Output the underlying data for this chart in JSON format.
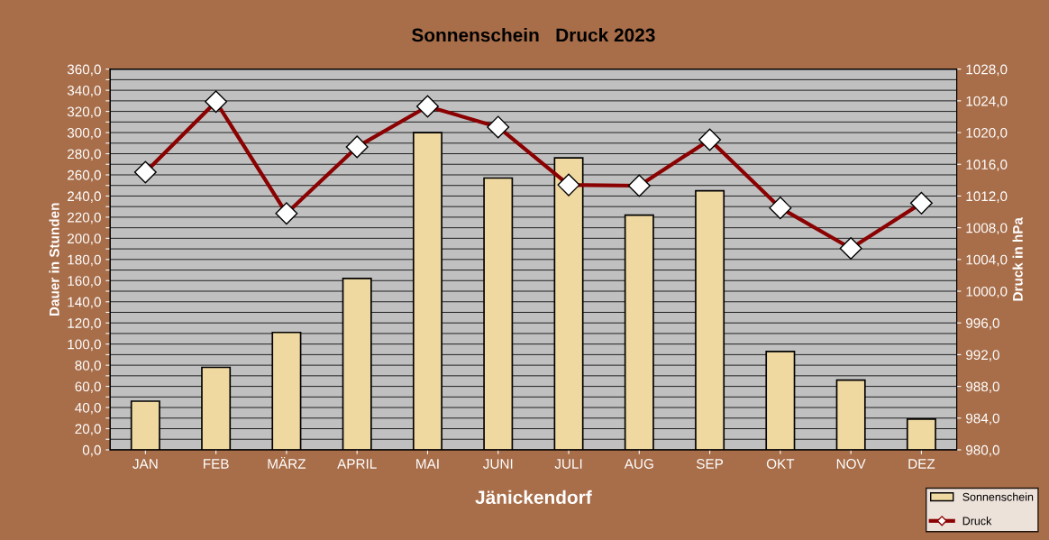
{
  "chart_data": {
    "type": "bar",
    "title": "Sonnenschein   Druck 2023",
    "xlabel": "Jänickendorf",
    "ylabel": "Dauer in Stunden",
    "y2label": "Druck in hPa",
    "categories": [
      "JAN",
      "FEB",
      "MÄRZ",
      "APRIL",
      "MAI",
      "JUNI",
      "JULI",
      "AUG",
      "SEP",
      "OKT",
      "NOV",
      "DEZ"
    ],
    "series": [
      {
        "name": "Sonnenschein",
        "color": "#f0d9a0",
        "values": [
          46,
          78,
          111,
          162,
          300,
          257,
          276,
          222,
          245,
          93,
          66,
          29
        ]
      },
      {
        "name": "Druck",
        "type": "line",
        "axis": "y2",
        "color": "#8b0000",
        "marker": "diamond",
        "values": [
          1015.0,
          1023.9,
          1009.8,
          1018.2,
          1023.3,
          1020.7,
          1013.4,
          1013.3,
          1019.1,
          1010.5,
          1005.4,
          1011.1
        ]
      }
    ],
    "ylim": [
      0,
      360
    ],
    "yticks": [
      {
        "value": 0,
        "label": "0,0"
      },
      {
        "value": 10,
        "label": null
      },
      {
        "value": 20,
        "label": "20,0"
      },
      {
        "value": 30,
        "label": null
      },
      {
        "value": 40,
        "label": "40,0"
      },
      {
        "value": 50,
        "label": null
      },
      {
        "value": 60,
        "label": "60,0"
      },
      {
        "value": 70,
        "label": null
      },
      {
        "value": 80,
        "label": "80,0"
      },
      {
        "value": 90,
        "label": null
      },
      {
        "value": 100,
        "label": "100,0"
      },
      {
        "value": 110,
        "label": null
      },
      {
        "value": 120,
        "label": "120,0"
      },
      {
        "value": 130,
        "label": null
      },
      {
        "value": 140,
        "label": "140,0"
      },
      {
        "value": 150,
        "label": null
      },
      {
        "value": 160,
        "label": "160,0"
      },
      {
        "value": 170,
        "label": null
      },
      {
        "value": 180,
        "label": "180,0"
      },
      {
        "value": 190,
        "label": null
      },
      {
        "value": 200,
        "label": "200,0"
      },
      {
        "value": 210,
        "label": null
      },
      {
        "value": 220,
        "label": "220,0"
      },
      {
        "value": 230,
        "label": null
      },
      {
        "value": 240,
        "label": "240,0"
      },
      {
        "value": 250,
        "label": null
      },
      {
        "value": 260,
        "label": "260,0"
      },
      {
        "value": 270,
        "label": null
      },
      {
        "value": 280,
        "label": "280,0"
      },
      {
        "value": 290,
        "label": null
      },
      {
        "value": 300,
        "label": "300,0"
      },
      {
        "value": 310,
        "label": null
      },
      {
        "value": 320,
        "label": "320,0"
      },
      {
        "value": 330,
        "label": null
      },
      {
        "value": 340,
        "label": "340,0"
      },
      {
        "value": 350,
        "label": null
      },
      {
        "value": 360,
        "label": "360,0"
      }
    ],
    "y2lim": [
      980,
      1028
    ],
    "y2ticks": [
      {
        "value": 980,
        "label": "980,0"
      },
      {
        "value": 984,
        "label": "984,0"
      },
      {
        "value": 988,
        "label": "988,0"
      },
      {
        "value": 992,
        "label": "992,0"
      },
      {
        "value": 996,
        "label": "996,0"
      },
      {
        "value": 1000,
        "label": "1000,0"
      },
      {
        "value": 1004,
        "label": "1004,0"
      },
      {
        "value": 1008,
        "label": "1008,0"
      },
      {
        "value": 1012,
        "label": "1012,0"
      },
      {
        "value": 1016,
        "label": "1016,0"
      },
      {
        "value": 1020,
        "label": "1020,0"
      },
      {
        "value": 1024,
        "label": "1024,0"
      },
      {
        "value": 1028,
        "label": "1028,0"
      }
    ],
    "grid": "y",
    "legend": "bottom right"
  }
}
